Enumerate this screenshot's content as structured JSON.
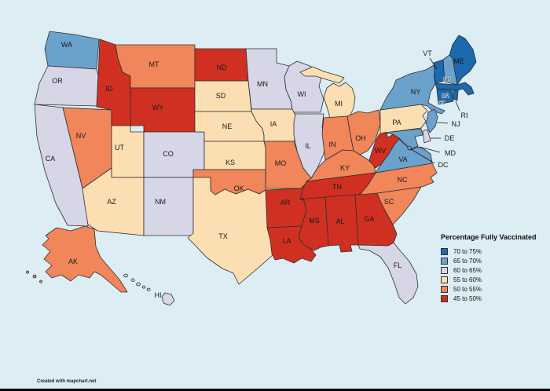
{
  "watermark": "Created with mapchart.net",
  "map": {
    "background": "#dcedf4",
    "border_color": "#2f2f2f",
    "label_color": "#1a1a1a"
  },
  "legend": {
    "title": "Percentage Fully Vaccinated",
    "position": "right",
    "items": [
      {
        "key": "70-75",
        "label": "70 to 75%",
        "color": "#1b69af"
      },
      {
        "key": "65-70",
        "label": "65 to 70%",
        "color": "#6ba2cc"
      },
      {
        "key": "60-65",
        "label": "60 to 65%",
        "color": "#d6d6e7"
      },
      {
        "key": "55-60",
        "label": "55 to 60%",
        "color": "#fbdfb3"
      },
      {
        "key": "50-55",
        "label": "50 to 55%",
        "color": "#f08659"
      },
      {
        "key": "45-50",
        "label": "45 to 50%",
        "color": "#d03022"
      }
    ]
  },
  "chart_data": {
    "type": "choropleth_map",
    "title": "Percentage Fully Vaccinated",
    "unit": "% fully vaccinated",
    "legend_position": "right",
    "categories": [
      "70 to 75%",
      "65 to 70%",
      "60 to 65%",
      "55 to 60%",
      "50 to 55%",
      "45 to 50%"
    ],
    "states": [
      {
        "abbr": "WA",
        "range": "65-70"
      },
      {
        "abbr": "OR",
        "range": "60-65"
      },
      {
        "abbr": "CA",
        "range": "60-65"
      },
      {
        "abbr": "NV",
        "range": "50-55"
      },
      {
        "abbr": "ID",
        "range": "45-50"
      },
      {
        "abbr": "MT",
        "range": "50-55"
      },
      {
        "abbr": "WY",
        "range": "45-50"
      },
      {
        "abbr": "UT",
        "range": "55-60"
      },
      {
        "abbr": "CO",
        "range": "60-65"
      },
      {
        "abbr": "AZ",
        "range": "55-60"
      },
      {
        "abbr": "NM",
        "range": "60-65"
      },
      {
        "abbr": "ND",
        "range": "45-50"
      },
      {
        "abbr": "SD",
        "range": "55-60"
      },
      {
        "abbr": "NE",
        "range": "55-60"
      },
      {
        "abbr": "KS",
        "range": "55-60"
      },
      {
        "abbr": "OK",
        "range": "50-55"
      },
      {
        "abbr": "TX",
        "range": "55-60"
      },
      {
        "abbr": "MN",
        "range": "60-65"
      },
      {
        "abbr": "IA",
        "range": "55-60"
      },
      {
        "abbr": "MO",
        "range": "50-55"
      },
      {
        "abbr": "AR",
        "range": "45-50"
      },
      {
        "abbr": "LA",
        "range": "45-50"
      },
      {
        "abbr": "WI",
        "range": "60-65"
      },
      {
        "abbr": "IL",
        "range": "60-65"
      },
      {
        "abbr": "MI",
        "range": "55-60"
      },
      {
        "abbr": "IN",
        "range": "50-55"
      },
      {
        "abbr": "OH",
        "range": "50-55"
      },
      {
        "abbr": "KY",
        "range": "50-55"
      },
      {
        "abbr": "TN",
        "range": "45-50"
      },
      {
        "abbr": "MS",
        "range": "45-50"
      },
      {
        "abbr": "AL",
        "range": "45-50"
      },
      {
        "abbr": "GA",
        "range": "45-50"
      },
      {
        "abbr": "SC",
        "range": "50-55"
      },
      {
        "abbr": "NC",
        "range": "50-55"
      },
      {
        "abbr": "FL",
        "range": "60-65"
      },
      {
        "abbr": "VA",
        "range": "65-70"
      },
      {
        "abbr": "WV",
        "range": "45-50"
      },
      {
        "abbr": "PA",
        "range": "55-60"
      },
      {
        "abbr": "NY",
        "range": "65-70"
      },
      {
        "abbr": "NJ",
        "range": "65-70"
      },
      {
        "abbr": "DE",
        "range": "60-65"
      },
      {
        "abbr": "MD",
        "range": "65-70"
      },
      {
        "abbr": "DC",
        "range": "65-70"
      },
      {
        "abbr": "VT",
        "range": "70-75"
      },
      {
        "abbr": "NH",
        "range": "65-70"
      },
      {
        "abbr": "ME",
        "range": "70-75"
      },
      {
        "abbr": "MA",
        "range": "70-75"
      },
      {
        "abbr": "CT",
        "range": "70-75"
      },
      {
        "abbr": "RI",
        "range": "70-75"
      },
      {
        "abbr": "AK",
        "range": "50-55"
      },
      {
        "abbr": "HI",
        "range": "60-65"
      }
    ]
  }
}
